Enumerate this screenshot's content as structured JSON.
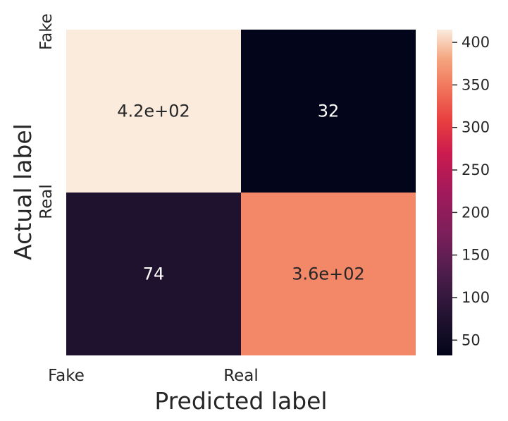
{
  "chart_data": {
    "type": "heatmap",
    "xlabel": "Predicted label",
    "ylabel": "Actual label",
    "x_categories": [
      "Fake",
      "Real"
    ],
    "y_categories": [
      "Fake",
      "Real"
    ],
    "values": [
      [
        415,
        32
      ],
      [
        74,
        360
      ]
    ],
    "annotations": [
      [
        "4.2e+02",
        "32"
      ],
      [
        "74",
        "3.6e+02"
      ]
    ],
    "colorbar": {
      "range": [
        32,
        415
      ],
      "ticks": [
        "50",
        "100",
        "150",
        "200",
        "250",
        "300",
        "350",
        "400"
      ]
    },
    "colormap": "rocket",
    "grid": false
  }
}
